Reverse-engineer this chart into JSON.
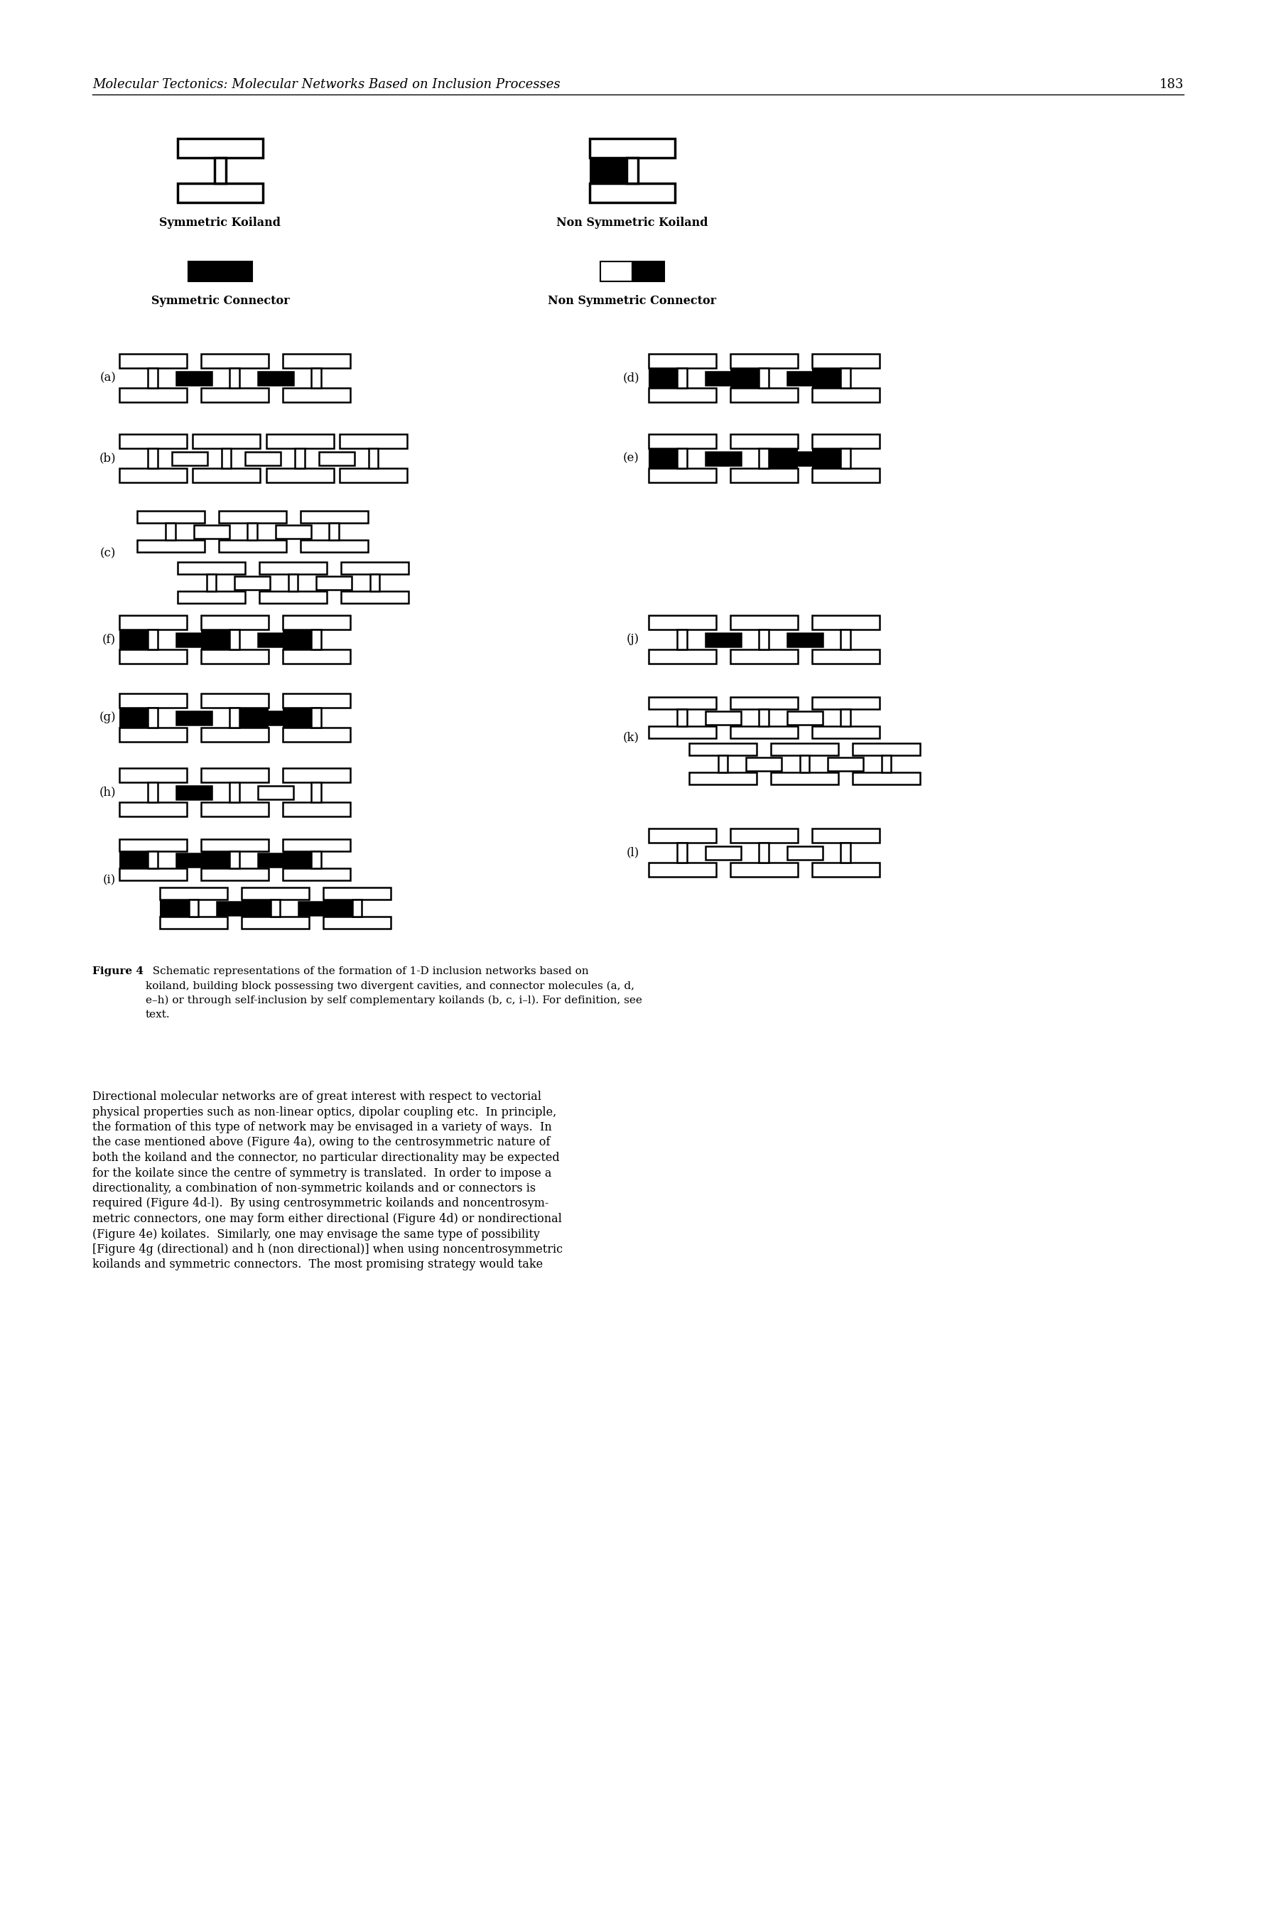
{
  "page_header": "Molecular Tectonics: Molecular Networks Based on Inclusion Processes",
  "page_number": "183",
  "bg_color": "#ffffff",
  "body_lines": [
    "Directional molecular networks are of great interest with respect to vectorial",
    "physical properties such as non-linear optics, dipolar coupling etc.  In principle,",
    "the formation of this type of network may be envisaged in a variety of ways.  In",
    "the case mentioned above (Figure 4a), owing to the centrosymmetric nature of",
    "both the koiland and the connector, no particular directionality may be expected",
    "for the koilate since the centre of symmetry is translated.  In order to impose a",
    "directionality, a combination of non-symmetric koilands and or connectors is",
    "required (Figure 4d-l).  By using centrosymmetric koilands and noncentrosym-",
    "metric connectors, one may form either directional (Figure 4d) or nondirectional",
    "(Figure 4e) koilates.  Similarly, one may envisage the same type of possibility",
    "[Figure 4g (directional) and h (non directional)] when using noncentrosymmetric",
    "koilands and symmetric connectors.  The most promising strategy would take"
  ]
}
